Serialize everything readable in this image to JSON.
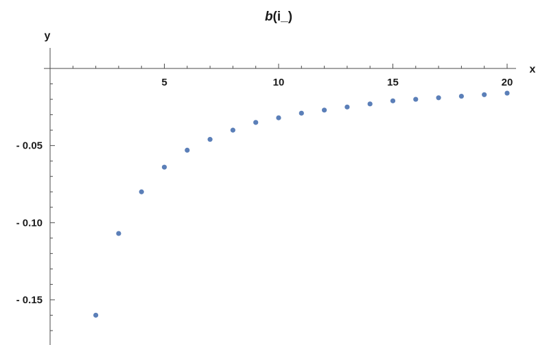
{
  "chart_data": {
    "type": "scatter",
    "title": "b(i_)",
    "title_func": "b",
    "title_args": "(i_)",
    "xlabel": "x",
    "ylabel": "y",
    "xlim": [
      0,
      20
    ],
    "ylim": [
      -0.185,
      0
    ],
    "grid": false,
    "x_ticks": [
      {
        "value": 5,
        "label": "5"
      },
      {
        "value": 10,
        "label": "10"
      },
      {
        "value": 15,
        "label": "15"
      },
      {
        "value": 20,
        "label": "20"
      }
    ],
    "y_ticks": [
      {
        "value": -0.05,
        "label": "- 0.05"
      },
      {
        "value": -0.1,
        "label": "- 0.10"
      },
      {
        "value": -0.15,
        "label": "- 0.15"
      }
    ],
    "x": [
      2,
      3,
      4,
      5,
      6,
      7,
      8,
      9,
      10,
      11,
      12,
      13,
      14,
      15,
      16,
      17,
      18,
      19,
      20
    ],
    "y": [
      -0.16,
      -0.107,
      -0.08,
      -0.064,
      -0.053,
      -0.046,
      -0.04,
      -0.035,
      -0.032,
      -0.029,
      -0.027,
      -0.025,
      -0.023,
      -0.021,
      -0.02,
      -0.019,
      -0.018,
      -0.017,
      -0.016
    ],
    "colors": {
      "point": "#5b7fb8",
      "axis": "#4a4a4a",
      "text": "#1a1a1a"
    }
  }
}
